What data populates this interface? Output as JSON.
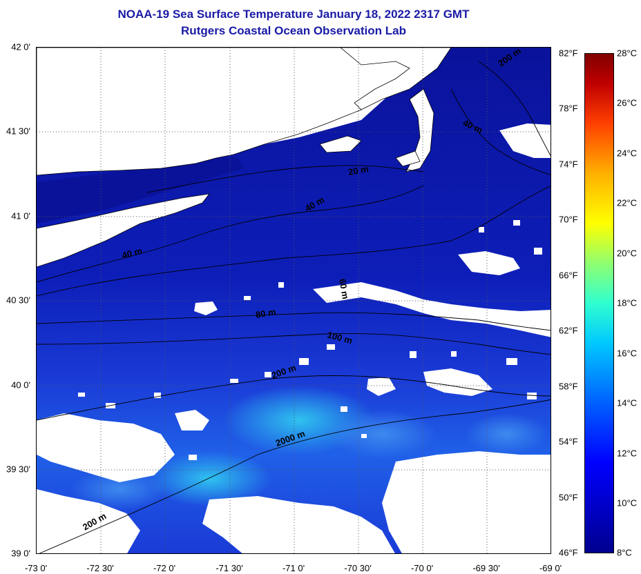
{
  "title_line1": "NOAA-19 Sea Surface Temperature January 18, 2022 2317 GMT",
  "title_line2": "Rutgers Coastal Ocean Observation Lab",
  "lat_labels": [
    "42 0'",
    "41 30'",
    "41 0'",
    "40 30'",
    "40 0'",
    "39 30'",
    "39 0'"
  ],
  "lon_labels": [
    "-73 0'",
    "-72 30'",
    "-72 0'",
    "-71 30'",
    "-71 0'",
    "-70 30'",
    "-70 0'",
    "-69 30'",
    "-69 0'"
  ],
  "fahrenheit_labels": [
    "82°F",
    "78°F",
    "74°F",
    "70°F",
    "66°F",
    "62°F",
    "58°F",
    "54°F",
    "50°F",
    "46°F"
  ],
  "celsius_labels": [
    "28°C",
    "26°C",
    "24°C",
    "22°C",
    "20°C",
    "18°C",
    "16°C",
    "14°C",
    "12°C",
    "10°C",
    "8°C"
  ],
  "contour_labels": [
    "200 m",
    "40 m",
    "20 m",
    "40 m",
    "40 m",
    "80 m",
    "60 m",
    "100 m",
    "200 m",
    "2000 m",
    "200 m"
  ],
  "colors": {
    "title": "#1a1aa6",
    "land": "#ffffff",
    "ocean_cold": "#0a14a0",
    "ocean_mid": "#1e3cd8",
    "ocean_warm": "#28b4e6"
  }
}
